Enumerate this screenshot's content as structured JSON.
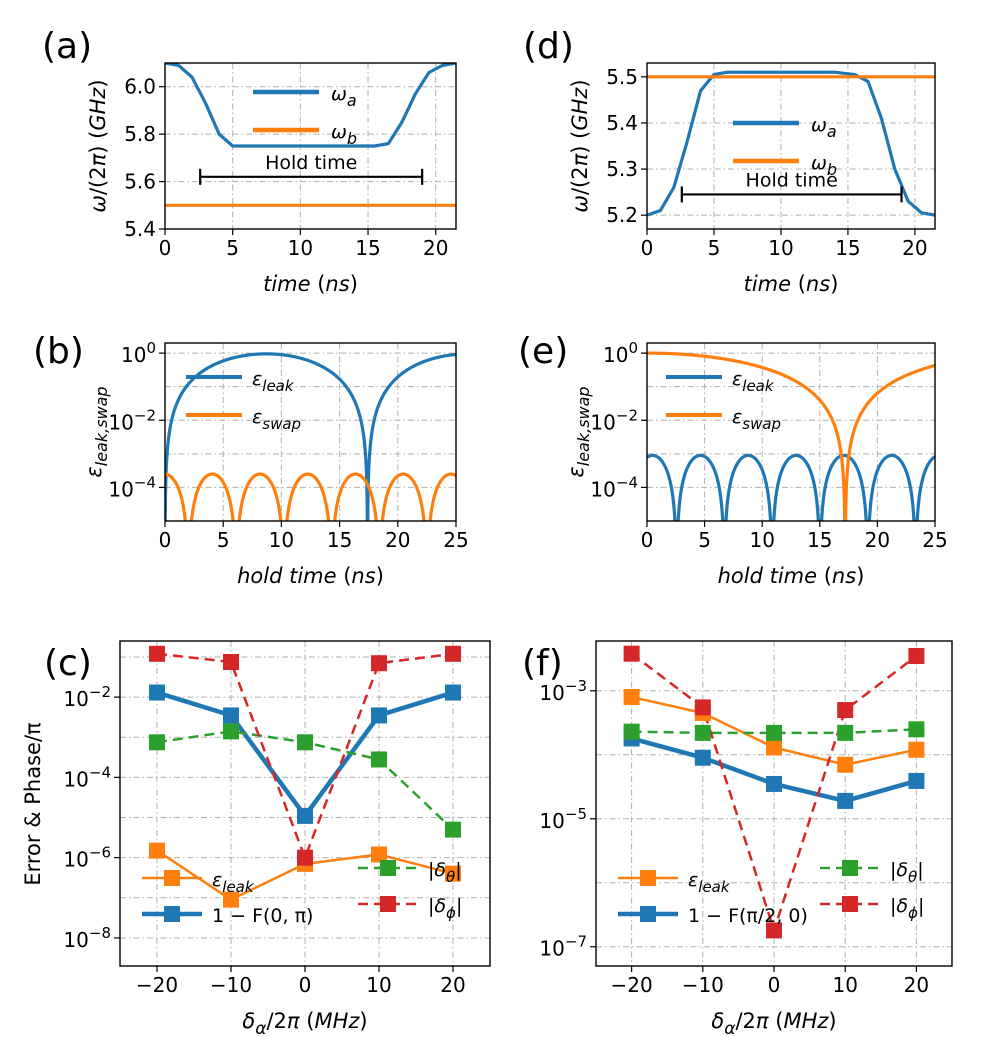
{
  "chart_data": [
    {
      "id": "a",
      "panel": "(a)",
      "type": "line",
      "ylabel": "ω/(2π) (GHz)",
      "xlabel": "time (ns)",
      "xlim": [
        0,
        21.5
      ],
      "ylim": [
        5.4,
        6.1
      ],
      "xticks": [
        0,
        5,
        10,
        15,
        20
      ],
      "xtick_labels": [
        "0",
        "5",
        "10",
        "15",
        "20"
      ],
      "yticks": [
        5.4,
        5.6,
        5.8,
        6.0
      ],
      "ytick_labels": [
        "5.4",
        "5.6",
        "5.8",
        "6.0"
      ],
      "series": [
        {
          "name": "ω_a",
          "color": "#1f77b4",
          "x": [
            0,
            1,
            2,
            3,
            4,
            5,
            6,
            8,
            10,
            12,
            14,
            15.5,
            16.5,
            17.5,
            18.5,
            19.5,
            20.5,
            21.5
          ],
          "y": [
            6.1,
            6.09,
            6.04,
            5.93,
            5.8,
            5.75,
            5.75,
            5.75,
            5.75,
            5.75,
            5.75,
            5.75,
            5.76,
            5.85,
            5.97,
            6.06,
            6.09,
            6.1
          ]
        },
        {
          "name": "ω_b",
          "color": "#ff7f0e",
          "x": [
            0,
            21.5
          ],
          "y": [
            5.5,
            5.5
          ]
        }
      ],
      "annotation": {
        "text": "Hold time",
        "x_start": 2.6,
        "x_end": 19.0,
        "y": 5.62
      },
      "legend": [
        {
          "label": "ω",
          "sub": "a",
          "color": "#1f77b4"
        },
        {
          "label": "ω",
          "sub": "b",
          "color": "#ff7f0e"
        }
      ]
    },
    {
      "id": "d",
      "panel": "(d)",
      "type": "line",
      "ylabel": "ω/(2π) (GHz)",
      "xlabel": "time (ns)",
      "xlim": [
        0,
        21.5
      ],
      "ylim": [
        5.17,
        5.53
      ],
      "xticks": [
        0,
        5,
        10,
        15,
        20
      ],
      "xtick_labels": [
        "0",
        "5",
        "10",
        "15",
        "20"
      ],
      "yticks": [
        5.2,
        5.3,
        5.4,
        5.5
      ],
      "ytick_labels": [
        "5.2",
        "5.3",
        "5.4",
        "5.5"
      ],
      "series": [
        {
          "name": "ω_a",
          "color": "#1f77b4",
          "x": [
            0,
            1,
            2,
            3,
            4,
            5,
            6,
            8,
            10,
            12,
            14,
            15.5,
            16.5,
            17.5,
            18.5,
            19.5,
            20.5,
            21.5
          ],
          "y": [
            5.2,
            5.21,
            5.26,
            5.36,
            5.47,
            5.505,
            5.51,
            5.51,
            5.51,
            5.51,
            5.51,
            5.505,
            5.49,
            5.41,
            5.3,
            5.23,
            5.205,
            5.2
          ]
        },
        {
          "name": "ω_b",
          "color": "#ff7f0e",
          "x": [
            0,
            21.5
          ],
          "y": [
            5.5,
            5.5
          ]
        }
      ],
      "annotation": {
        "text": "Hold time",
        "x_start": 2.6,
        "x_end": 19.0,
        "y": 5.245
      },
      "legend": [
        {
          "label": "ω",
          "sub": "a",
          "color": "#1f77b4"
        },
        {
          "label": "ω",
          "sub": "b",
          "color": "#ff7f0e"
        }
      ]
    },
    {
      "id": "b",
      "panel": "(b)",
      "type": "line",
      "yscale": "log",
      "ylabel": "ε_leak,swap",
      "xlabel": "hold time (ns)",
      "xlim": [
        0,
        25
      ],
      "ylim": [
        1e-05,
        2
      ],
      "xticks": [
        0,
        5,
        10,
        15,
        20,
        25
      ],
      "xtick_labels": [
        "0",
        "5",
        "10",
        "15",
        "20",
        "25"
      ],
      "yticks": [
        0.0001,
        0.01,
        1
      ],
      "ytick_labels": [
        "10^-4",
        "10^-2",
        "10^0"
      ],
      "series": [
        {
          "name": "ε_leak",
          "color": "#1f77b4",
          "model": "sin2",
          "amp": 0.95,
          "period": 17.4,
          "phase": 0
        },
        {
          "name": "ε_swap",
          "color": "#ff7f0e",
          "model": "sin2",
          "amp": 0.00025,
          "period": 4.1,
          "phase": 1.6
        }
      ],
      "legend": [
        {
          "label": "ε",
          "sub": "leak",
          "color": "#1f77b4"
        },
        {
          "label": "ε",
          "sub": "swap",
          "color": "#ff7f0e"
        }
      ]
    },
    {
      "id": "e",
      "panel": "(e)",
      "type": "line",
      "yscale": "log",
      "ylabel": "ε_leak,swap",
      "xlabel": "hold time (ns)",
      "xlim": [
        0,
        25
      ],
      "ylim": [
        1e-05,
        2
      ],
      "xticks": [
        0,
        5,
        10,
        15,
        20,
        25
      ],
      "xtick_labels": [
        "0",
        "5",
        "10",
        "15",
        "20",
        "25"
      ],
      "yticks": [
        0.0001,
        0.01,
        1
      ],
      "ytick_labels": [
        "10^-4",
        "10^-2",
        "10^0"
      ],
      "series": [
        {
          "name": "ε_leak",
          "color": "#1f77b4",
          "model": "sin2",
          "amp": 0.0009,
          "period": 4.15,
          "phase": 1.2
        },
        {
          "name": "ε_swap",
          "color": "#ff7f0e",
          "model": "cos2",
          "amp": 1.0,
          "period": 34.4,
          "phase": 0
        }
      ],
      "legend": [
        {
          "label": "ε",
          "sub": "leak",
          "color": "#1f77b4"
        },
        {
          "label": "ε",
          "sub": "swap",
          "color": "#ff7f0e"
        }
      ]
    },
    {
      "id": "c",
      "panel": "(c)",
      "type": "line",
      "yscale": "log",
      "ylabel": "Error & Phase/π",
      "xlabel": "δ_α/2π (MHz)",
      "xlim": [
        -25,
        25
      ],
      "ylim": [
        2e-09,
        0.25
      ],
      "xticks": [
        -20,
        -10,
        0,
        10,
        20
      ],
      "xtick_labels": [
        "−20",
        "−10",
        "0",
        "10",
        "20"
      ],
      "yticks": [
        1e-08,
        1e-06,
        0.0001,
        0.01
      ],
      "ytick_labels": [
        "10^-8",
        "10^-6",
        "10^-4",
        "10^-2"
      ],
      "x": [
        -20,
        -10,
        0,
        10,
        20
      ],
      "series": [
        {
          "name": "ε_leak",
          "color": "#ff7f0e",
          "dash": "",
          "width": 2.5,
          "values": [
            1.5e-06,
            9e-08,
            7e-07,
            1.2e-06,
            4e-07
          ]
        },
        {
          "name": "1 − F(0, π)",
          "color": "#1f77b4",
          "dash": "",
          "width": 4.5,
          "values": [
            0.013,
            0.0035,
            1.1e-05,
            0.0035,
            0.013
          ]
        },
        {
          "name": "|δ_θ|",
          "color": "#2ca02c",
          "dash": "10 6",
          "width": 2.5,
          "values": [
            0.00075,
            0.0014,
            0.00075,
            0.00028,
            5e-06
          ]
        },
        {
          "name": "|δ_φ|",
          "color": "#d62728",
          "dash": "10 6",
          "width": 2.5,
          "values": [
            0.12,
            0.075,
            1e-06,
            0.07,
            0.12
          ]
        }
      ],
      "legend": [
        {
          "label": "ε",
          "sub": "leak",
          "color": "#ff7f0e"
        },
        {
          "label": "1 − F(0, π)",
          "color": "#1f77b4"
        },
        {
          "label": "|δ",
          "sub": "θ",
          "tail": "|",
          "color": "#2ca02c"
        },
        {
          "label": "|δ",
          "sub": "ϕ",
          "tail": "|",
          "color": "#d62728"
        }
      ]
    },
    {
      "id": "f",
      "panel": "(f)",
      "type": "line",
      "yscale": "log",
      "ylabel": "",
      "xlabel": "δ_α/2π (MHz)",
      "xlim": [
        -25,
        25
      ],
      "ylim": [
        5e-08,
        0.006
      ],
      "xticks": [
        -20,
        -10,
        0,
        10,
        20
      ],
      "xtick_labels": [
        "−20",
        "−10",
        "0",
        "10",
        "20"
      ],
      "yticks": [
        1e-07,
        1e-05,
        0.001
      ],
      "ytick_labels": [
        "10^-7",
        "10^-5",
        "10^-3"
      ],
      "x": [
        -20,
        -10,
        0,
        10,
        20
      ],
      "series": [
        {
          "name": "ε_leak",
          "color": "#ff7f0e",
          "dash": "",
          "width": 2.5,
          "values": [
            0.0008,
            0.00045,
            0.00013,
            7e-05,
            0.00012
          ]
        },
        {
          "name": "1 − F(π/2, 0)",
          "color": "#1f77b4",
          "dash": "",
          "width": 4.5,
          "values": [
            0.00018,
            9e-05,
            3.5e-05,
            1.9e-05,
            3.9e-05
          ]
        },
        {
          "name": "|δ_θ|",
          "color": "#2ca02c",
          "dash": "10 6",
          "width": 2.5,
          "values": [
            0.00023,
            0.00022,
            0.00022,
            0.00022,
            0.00025
          ]
        },
        {
          "name": "|δ_φ|",
          "color": "#d62728",
          "dash": "10 6",
          "width": 2.5,
          "values": [
            0.0038,
            0.00055,
            1.8e-07,
            0.0005,
            0.0035
          ]
        }
      ],
      "legend": [
        {
          "label": "ε",
          "sub": "leak",
          "color": "#ff7f0e"
        },
        {
          "label": "1 − F(π/2, 0)",
          "color": "#1f77b4"
        },
        {
          "label": "|δ",
          "sub": "θ",
          "tail": "|",
          "color": "#2ca02c"
        },
        {
          "label": "|δ",
          "sub": "ϕ",
          "tail": "|",
          "color": "#d62728"
        }
      ]
    }
  ]
}
